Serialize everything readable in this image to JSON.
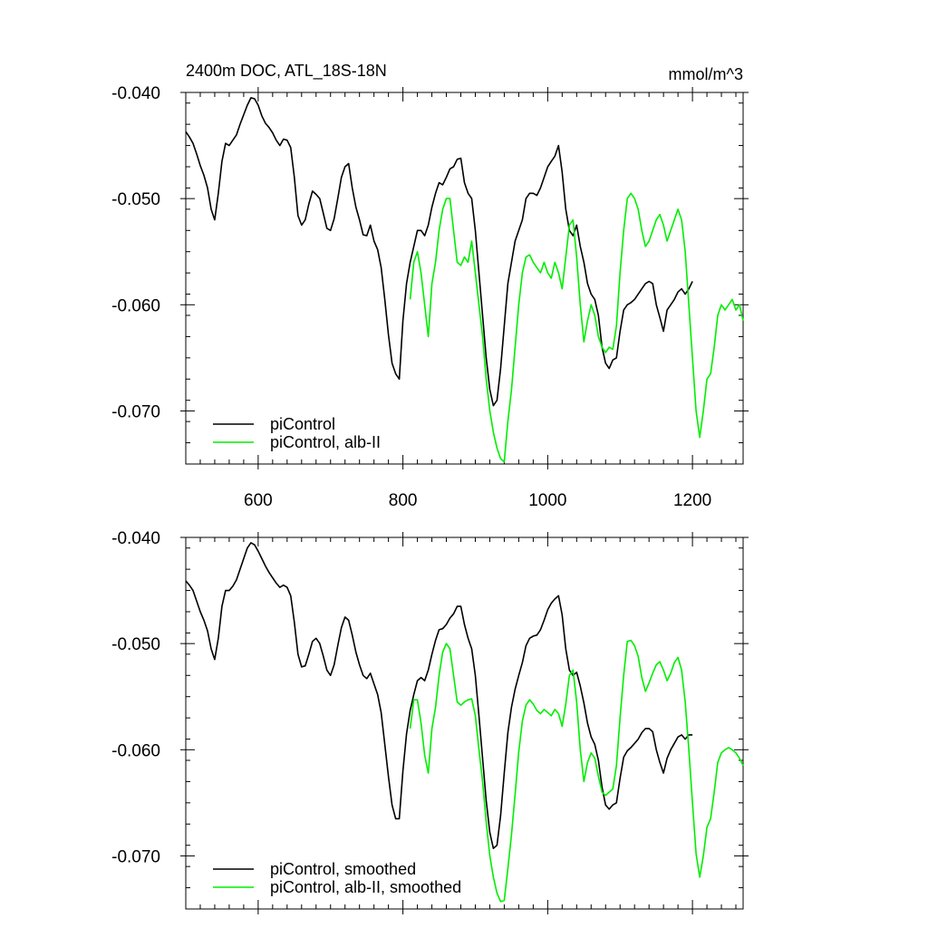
{
  "colors": {
    "control": "#000000",
    "alb": "#00ee00"
  },
  "chart_data": [
    {
      "type": "line",
      "title": "2400m DOC, ATL_18S-18N",
      "units": "mmol/m^3",
      "xlim": [
        500,
        1270
      ],
      "ylim": [
        -0.075,
        -0.04
      ],
      "xticks": [
        600,
        800,
        1000,
        1200
      ],
      "xtick_labels": [
        "600",
        "800",
        "1000",
        "1200"
      ],
      "yticks": [
        -0.04,
        -0.05,
        -0.06,
        -0.07
      ],
      "ytick_labels": [
        "-0.040",
        "-0.050",
        "-0.060",
        "-0.070"
      ],
      "x_labels_shown": true,
      "series": [
        {
          "name": "piControl",
          "color": "#000000",
          "x": [
            500,
            505,
            510,
            515,
            520,
            525,
            530,
            535,
            540,
            545,
            550,
            555,
            560,
            565,
            570,
            575,
            580,
            585,
            590,
            595,
            600,
            605,
            610,
            615,
            620,
            625,
            630,
            635,
            640,
            645,
            650,
            655,
            660,
            665,
            670,
            675,
            680,
            685,
            690,
            695,
            700,
            705,
            710,
            715,
            720,
            725,
            730,
            735,
            740,
            745,
            750,
            755,
            760,
            765,
            770,
            775,
            780,
            785,
            790,
            795,
            800,
            805,
            810,
            815,
            820,
            825,
            830,
            835,
            840,
            845,
            850,
            855,
            860,
            865,
            870,
            875,
            880,
            885,
            890,
            895,
            900,
            905,
            910,
            915,
            920,
            925,
            930,
            935,
            940,
            945,
            950,
            955,
            960,
            965,
            970,
            975,
            980,
            985,
            990,
            995,
            1000,
            1005,
            1010,
            1015,
            1020,
            1025,
            1030,
            1035,
            1040,
            1045,
            1050,
            1055,
            1060,
            1065,
            1070,
            1075,
            1080,
            1085,
            1090,
            1095,
            1100,
            1105,
            1110,
            1115,
            1120,
            1125,
            1130,
            1135,
            1140,
            1145,
            1150,
            1155,
            1160,
            1165,
            1170,
            1175,
            1180,
            1185,
            1190,
            1195,
            1200
          ],
          "y": [
            -0.0437,
            -0.0442,
            -0.0448,
            -0.0458,
            -0.0469,
            -0.0478,
            -0.049,
            -0.051,
            -0.052,
            -0.0495,
            -0.0465,
            -0.0448,
            -0.045,
            -0.0445,
            -0.044,
            -0.043,
            -0.0421,
            -0.0412,
            -0.0405,
            -0.0406,
            -0.0412,
            -0.0422,
            -0.0429,
            -0.0433,
            -0.0438,
            -0.0445,
            -0.045,
            -0.0444,
            -0.0445,
            -0.0452,
            -0.048,
            -0.0516,
            -0.0525,
            -0.052,
            -0.0505,
            -0.0493,
            -0.0496,
            -0.05,
            -0.0514,
            -0.0528,
            -0.053,
            -0.0519,
            -0.05,
            -0.048,
            -0.047,
            -0.0467,
            -0.049,
            -0.0508,
            -0.052,
            -0.0534,
            -0.0535,
            -0.0525,
            -0.054,
            -0.0548,
            -0.0565,
            -0.0595,
            -0.0628,
            -0.0655,
            -0.0665,
            -0.067,
            -0.0615,
            -0.058,
            -0.056,
            -0.0545,
            -0.053,
            -0.053,
            -0.0535,
            -0.0525,
            -0.0508,
            -0.0495,
            -0.0485,
            -0.0487,
            -0.048,
            -0.0472,
            -0.047,
            -0.0463,
            -0.0462,
            -0.0485,
            -0.0495,
            -0.05,
            -0.053,
            -0.057,
            -0.061,
            -0.065,
            -0.068,
            -0.0695,
            -0.069,
            -0.066,
            -0.062,
            -0.058,
            -0.056,
            -0.054,
            -0.053,
            -0.052,
            -0.05,
            -0.0495,
            -0.0495,
            -0.0497,
            -0.049,
            -0.048,
            -0.047,
            -0.0465,
            -0.046,
            -0.045,
            -0.0475,
            -0.051,
            -0.053,
            -0.0535,
            -0.0525,
            -0.0545,
            -0.056,
            -0.058,
            -0.059,
            -0.0595,
            -0.061,
            -0.064,
            -0.0655,
            -0.066,
            -0.0652,
            -0.065,
            -0.0625,
            -0.0605,
            -0.06,
            -0.0598,
            -0.0595,
            -0.059,
            -0.0585,
            -0.058,
            -0.0578,
            -0.058,
            -0.06,
            -0.0612,
            -0.0625,
            -0.0605,
            -0.06,
            -0.0595,
            -0.0588,
            -0.0585,
            -0.059,
            -0.0585,
            -0.0578
          ]
        },
        {
          "name": "piControl, alb-II",
          "color": "#00ee00",
          "x": [
            810,
            815,
            820,
            825,
            830,
            835,
            840,
            845,
            850,
            855,
            860,
            865,
            870,
            875,
            880,
            885,
            890,
            895,
            900,
            905,
            910,
            915,
            920,
            925,
            930,
            935,
            940,
            945,
            950,
            955,
            960,
            965,
            970,
            975,
            980,
            985,
            990,
            995,
            1000,
            1005,
            1010,
            1015,
            1020,
            1025,
            1030,
            1035,
            1040,
            1045,
            1050,
            1055,
            1060,
            1065,
            1070,
            1075,
            1080,
            1085,
            1090,
            1095,
            1100,
            1105,
            1110,
            1115,
            1120,
            1125,
            1130,
            1135,
            1140,
            1145,
            1150,
            1155,
            1160,
            1165,
            1170,
            1175,
            1180,
            1185,
            1190,
            1195,
            1200,
            1205,
            1210,
            1215,
            1220,
            1225,
            1230,
            1235,
            1240,
            1245,
            1250,
            1255,
            1260,
            1265,
            1270
          ],
          "y": [
            -0.0595,
            -0.056,
            -0.055,
            -0.057,
            -0.06,
            -0.063,
            -0.058,
            -0.056,
            -0.053,
            -0.051,
            -0.05,
            -0.05,
            -0.053,
            -0.056,
            -0.0563,
            -0.0555,
            -0.056,
            -0.054,
            -0.057,
            -0.06,
            -0.063,
            -0.067,
            -0.07,
            -0.072,
            -0.0735,
            -0.0745,
            -0.0748,
            -0.071,
            -0.068,
            -0.064,
            -0.06,
            -0.057,
            -0.0555,
            -0.0553,
            -0.056,
            -0.0565,
            -0.057,
            -0.056,
            -0.057,
            -0.0575,
            -0.056,
            -0.057,
            -0.0585,
            -0.0555,
            -0.0525,
            -0.052,
            -0.0555,
            -0.06,
            -0.0635,
            -0.0615,
            -0.06,
            -0.061,
            -0.063,
            -0.064,
            -0.0645,
            -0.064,
            -0.0642,
            -0.062,
            -0.057,
            -0.053,
            -0.05,
            -0.0495,
            -0.05,
            -0.051,
            -0.053,
            -0.0545,
            -0.054,
            -0.053,
            -0.052,
            -0.0515,
            -0.0525,
            -0.054,
            -0.053,
            -0.052,
            -0.051,
            -0.052,
            -0.055,
            -0.06,
            -0.065,
            -0.07,
            -0.0725,
            -0.07,
            -0.067,
            -0.0665,
            -0.064,
            -0.061,
            -0.06,
            -0.0605,
            -0.06,
            -0.0595,
            -0.0605,
            -0.06,
            -0.0615
          ]
        }
      ],
      "legend": {
        "position": "bottom-left",
        "entries": [
          "piControl",
          "piControl, alb-II"
        ]
      }
    },
    {
      "type": "line",
      "title": "",
      "units": "",
      "xlim": [
        500,
        1270
      ],
      "ylim": [
        -0.075,
        -0.04
      ],
      "xticks": [
        600,
        800,
        1000,
        1200
      ],
      "xtick_labels": [
        "",
        "",
        "",
        ""
      ],
      "yticks": [
        -0.04,
        -0.05,
        -0.06,
        -0.07
      ],
      "ytick_labels": [
        "-0.040",
        "-0.050",
        "-0.060",
        "-0.070"
      ],
      "x_labels_shown": false,
      "series": [
        {
          "name": "piControl, smoothed",
          "color": "#000000",
          "x": [
            500,
            505,
            510,
            515,
            520,
            525,
            530,
            535,
            540,
            545,
            550,
            555,
            560,
            565,
            570,
            575,
            580,
            585,
            590,
            595,
            600,
            605,
            610,
            615,
            620,
            625,
            630,
            635,
            640,
            645,
            650,
            655,
            660,
            665,
            670,
            675,
            680,
            685,
            690,
            695,
            700,
            705,
            710,
            715,
            720,
            725,
            730,
            735,
            740,
            745,
            750,
            755,
            760,
            765,
            770,
            775,
            780,
            785,
            790,
            795,
            800,
            805,
            810,
            815,
            820,
            825,
            830,
            835,
            840,
            845,
            850,
            855,
            860,
            865,
            870,
            875,
            880,
            885,
            890,
            895,
            900,
            905,
            910,
            915,
            920,
            925,
            930,
            935,
            940,
            945,
            950,
            955,
            960,
            965,
            970,
            975,
            980,
            985,
            990,
            995,
            1000,
            1005,
            1010,
            1015,
            1020,
            1025,
            1030,
            1035,
            1040,
            1045,
            1050,
            1055,
            1060,
            1065,
            1070,
            1075,
            1080,
            1085,
            1090,
            1095,
            1100,
            1105,
            1110,
            1115,
            1120,
            1125,
            1130,
            1135,
            1140,
            1145,
            1150,
            1155,
            1160,
            1165,
            1170,
            1175,
            1180,
            1185,
            1190,
            1195,
            1200
          ],
          "y": [
            -0.0441,
            -0.0445,
            -0.045,
            -0.046,
            -0.047,
            -0.0478,
            -0.0488,
            -0.0505,
            -0.0515,
            -0.0495,
            -0.0465,
            -0.045,
            -0.045,
            -0.0446,
            -0.044,
            -0.043,
            -0.042,
            -0.041,
            -0.0405,
            -0.0407,
            -0.0413,
            -0.042,
            -0.0427,
            -0.0433,
            -0.0438,
            -0.0443,
            -0.0447,
            -0.0445,
            -0.0447,
            -0.0455,
            -0.048,
            -0.051,
            -0.0522,
            -0.0521,
            -0.051,
            -0.0498,
            -0.0495,
            -0.05,
            -0.0512,
            -0.0525,
            -0.053,
            -0.052,
            -0.0502,
            -0.0485,
            -0.0475,
            -0.0478,
            -0.0492,
            -0.0508,
            -0.052,
            -0.053,
            -0.0533,
            -0.0528,
            -0.0538,
            -0.0548,
            -0.0565,
            -0.0595,
            -0.0625,
            -0.0652,
            -0.0665,
            -0.0665,
            -0.062,
            -0.0585,
            -0.0563,
            -0.0548,
            -0.0535,
            -0.0532,
            -0.0535,
            -0.0525,
            -0.051,
            -0.0497,
            -0.0487,
            -0.0486,
            -0.0482,
            -0.0476,
            -0.0472,
            -0.0465,
            -0.0465,
            -0.0482,
            -0.0495,
            -0.0505,
            -0.053,
            -0.0568,
            -0.0608,
            -0.0648,
            -0.0678,
            -0.0693,
            -0.069,
            -0.0662,
            -0.0622,
            -0.0584,
            -0.056,
            -0.0543,
            -0.053,
            -0.0518,
            -0.0502,
            -0.0495,
            -0.0493,
            -0.0492,
            -0.0487,
            -0.0478,
            -0.0468,
            -0.0462,
            -0.0458,
            -0.0455,
            -0.0473,
            -0.0505,
            -0.0525,
            -0.053,
            -0.0527,
            -0.054,
            -0.0556,
            -0.0575,
            -0.0588,
            -0.0595,
            -0.061,
            -0.0635,
            -0.0652,
            -0.0656,
            -0.0652,
            -0.065,
            -0.0627,
            -0.0607,
            -0.0601,
            -0.0598,
            -0.0594,
            -0.059,
            -0.0584,
            -0.058,
            -0.058,
            -0.0583,
            -0.06,
            -0.0612,
            -0.0622,
            -0.0608,
            -0.06,
            -0.0594,
            -0.0588,
            -0.0586,
            -0.059,
            -0.0586,
            -0.0586
          ]
        },
        {
          "name": "piControl, alb-II, smoothed",
          "color": "#00ee00",
          "x": [
            810,
            815,
            820,
            825,
            830,
            835,
            840,
            845,
            850,
            855,
            860,
            865,
            870,
            875,
            880,
            885,
            890,
            895,
            900,
            905,
            910,
            915,
            920,
            925,
            930,
            935,
            940,
            945,
            950,
            955,
            960,
            965,
            970,
            975,
            980,
            985,
            990,
            995,
            1000,
            1005,
            1010,
            1015,
            1020,
            1025,
            1030,
            1035,
            1040,
            1045,
            1050,
            1055,
            1060,
            1065,
            1070,
            1075,
            1080,
            1085,
            1090,
            1095,
            1100,
            1105,
            1110,
            1115,
            1120,
            1125,
            1130,
            1135,
            1140,
            1145,
            1150,
            1155,
            1160,
            1165,
            1170,
            1175,
            1180,
            1185,
            1190,
            1195,
            1200,
            1205,
            1210,
            1215,
            1220,
            1225,
            1230,
            1235,
            1240,
            1245,
            1250,
            1255,
            1260,
            1265,
            1270
          ],
          "y": [
            -0.058,
            -0.0553,
            -0.0553,
            -0.0575,
            -0.0605,
            -0.0622,
            -0.058,
            -0.056,
            -0.053,
            -0.0508,
            -0.05,
            -0.0505,
            -0.053,
            -0.0555,
            -0.0558,
            -0.0555,
            -0.0553,
            -0.0552,
            -0.0568,
            -0.06,
            -0.063,
            -0.0668,
            -0.07,
            -0.072,
            -0.0735,
            -0.0743,
            -0.0742,
            -0.0712,
            -0.068,
            -0.0642,
            -0.0602,
            -0.0573,
            -0.0558,
            -0.0553,
            -0.0557,
            -0.0563,
            -0.0566,
            -0.0562,
            -0.0565,
            -0.0568,
            -0.0562,
            -0.0566,
            -0.0578,
            -0.0557,
            -0.053,
            -0.0525,
            -0.0555,
            -0.06,
            -0.063,
            -0.0612,
            -0.0603,
            -0.0608,
            -0.0625,
            -0.064,
            -0.0643,
            -0.064,
            -0.0637,
            -0.0615,
            -0.057,
            -0.053,
            -0.0498,
            -0.0497,
            -0.0502,
            -0.0512,
            -0.0532,
            -0.0545,
            -0.0537,
            -0.0528,
            -0.052,
            -0.0517,
            -0.0525,
            -0.0535,
            -0.0528,
            -0.0518,
            -0.0513,
            -0.0525,
            -0.0555,
            -0.06,
            -0.065,
            -0.0698,
            -0.072,
            -0.07,
            -0.0673,
            -0.0665,
            -0.064,
            -0.0612,
            -0.0603,
            -0.06,
            -0.0598,
            -0.06,
            -0.0603,
            -0.0608,
            -0.0615
          ]
        }
      ],
      "legend": {
        "position": "bottom-left",
        "entries": [
          "piControl, smoothed",
          "piControl, alb-II, smoothed"
        ]
      }
    }
  ]
}
